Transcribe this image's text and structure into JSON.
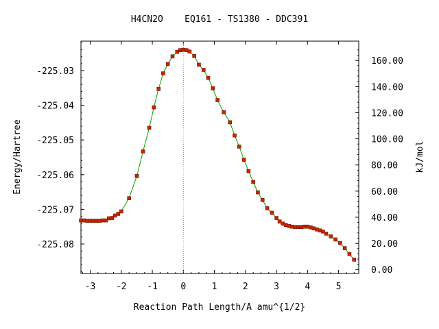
{
  "chart_data": {
    "type": "line",
    "title": "H4CN2O    EQ161 - TS1380 - DDC391",
    "xlabel": "Reaction Path Length/A amu^{1/2}",
    "ylabel": "Energy/Hartree",
    "y2label": "kJ/mol",
    "xlim": [
      -3.3,
      5.65
    ],
    "ylim": [
      -225.0885,
      -225.0215
    ],
    "y2lim": [
      -3.02,
      174.75
    ],
    "x_ticks": [
      -3,
      -2,
      -1,
      0,
      1,
      2,
      3,
      4,
      5
    ],
    "x_tick_labels": [
      "-3",
      "-2",
      "-1",
      "0",
      "1",
      "2",
      "3",
      "4",
      "5"
    ],
    "y_ticks": [
      -225.03,
      -225.04,
      -225.05,
      -225.06,
      -225.07,
      -225.08
    ],
    "y_tick_labels": [
      "-225.03",
      "-225.04",
      "-225.05",
      "-225.06",
      "-225.07",
      "-225.08"
    ],
    "y2_ticks": [
      0,
      20,
      40,
      60,
      80,
      100,
      120,
      140,
      160
    ],
    "y2_tick_labels": [
      "0.00",
      "20.00",
      "40.00",
      "60.00",
      "80.00",
      "100.00",
      "120.00",
      "140.00",
      "160.00"
    ],
    "ts_x": 0,
    "grid": false,
    "legend": "none",
    "colors": {
      "line": "#00a000",
      "marker": "#cc2200",
      "marker_edge": "#6a1a00",
      "ts_line": "#888888"
    },
    "series": [
      {
        "x": [
          -3.3,
          -3.2,
          -3.1,
          -3.0,
          -2.9,
          -2.8,
          -2.7,
          -2.6,
          -2.5,
          -2.4,
          -2.3,
          -2.2,
          -2.1,
          -2.0,
          -1.75,
          -1.5,
          -1.3,
          -1.1,
          -0.95,
          -0.8,
          -0.65,
          -0.5,
          -0.35,
          -0.2,
          -0.1,
          0.0,
          0.1,
          0.2,
          0.35,
          0.5,
          0.65,
          0.8,
          0.95,
          1.1,
          1.3,
          1.5,
          1.65,
          1.8,
          1.95,
          2.1,
          2.25,
          2.4,
          2.55,
          2.7,
          2.85,
          3.0,
          3.1,
          3.2,
          3.3,
          3.4,
          3.5,
          3.6,
          3.7,
          3.8,
          3.9,
          4.0,
          4.1,
          4.2,
          4.3,
          4.4,
          4.5,
          4.6,
          4.75,
          4.9,
          5.05,
          5.2,
          5.35,
          5.5
        ],
        "y": [
          -225.0732,
          -225.0732,
          -225.0733,
          -225.0733,
          -225.0733,
          -225.0733,
          -225.0733,
          -225.0732,
          -225.0732,
          -225.0726,
          -225.0725,
          -225.0718,
          -225.0713,
          -225.0706,
          -225.0668,
          -225.0604,
          -225.0533,
          -225.0465,
          -225.0406,
          -225.0353,
          -225.0308,
          -225.0281,
          -225.0259,
          -225.0246,
          -225.0241,
          -225.024,
          -225.0241,
          -225.0245,
          -225.0258,
          -225.0283,
          -225.0298,
          -225.0321,
          -225.0351,
          -225.0385,
          -225.042,
          -225.0449,
          -225.0487,
          -225.0519,
          -225.0557,
          -225.059,
          -225.0621,
          -225.0651,
          -225.0673,
          -225.0697,
          -225.071,
          -225.0725,
          -225.0735,
          -225.0741,
          -225.0745,
          -225.0748,
          -225.075,
          -225.0751,
          -225.0751,
          -225.0751,
          -225.075,
          -225.075,
          -225.0752,
          -225.0755,
          -225.0758,
          -225.0761,
          -225.0764,
          -225.077,
          -225.0778,
          -225.0787,
          -225.0797,
          -225.0812,
          -225.0829,
          -225.0845
        ]
      }
    ]
  }
}
